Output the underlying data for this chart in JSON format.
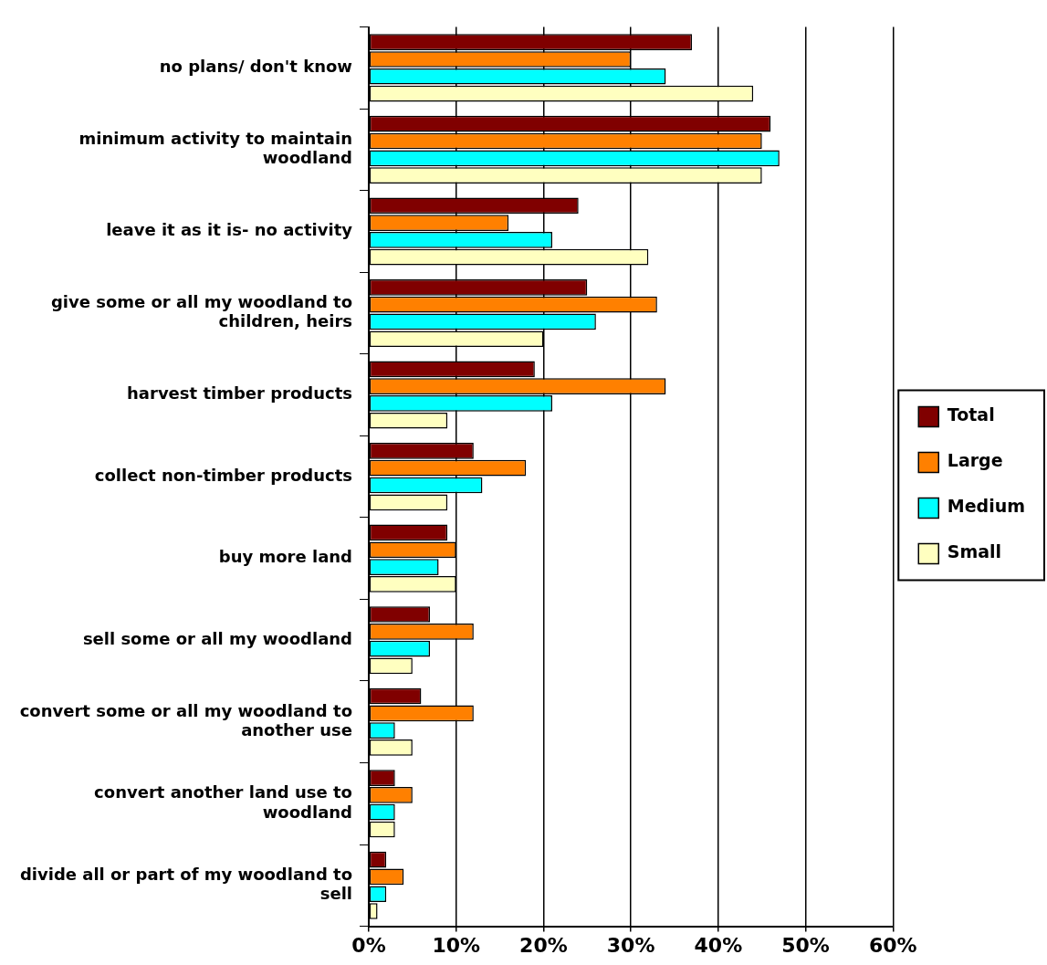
{
  "chart_data": {
    "type": "bar",
    "orientation": "horizontal",
    "categories": [
      "no plans/ don't know",
      "minimum activity to maintain woodland",
      "leave it as it is- no activity",
      "give some or all my woodland to children, heirs",
      "harvest timber products",
      "collect non-timber products",
      "buy more land",
      "sell some or all my woodland",
      "convert some or all my woodland to another use",
      "convert another land use to woodland",
      "divide all or part of my woodland to sell"
    ],
    "series": [
      {
        "name": "Total",
        "color": "#800000",
        "values": [
          37,
          46,
          24,
          25,
          19,
          12,
          9,
          7,
          6,
          3,
          2
        ]
      },
      {
        "name": "Large",
        "color": "#ff8000",
        "values": [
          30,
          45,
          16,
          33,
          34,
          18,
          10,
          12,
          12,
          5,
          4
        ]
      },
      {
        "name": "Medium",
        "color": "#00ffff",
        "values": [
          34,
          47,
          21,
          26,
          21,
          13,
          8,
          7,
          3,
          3,
          2
        ]
      },
      {
        "name": "Small",
        "color": "#ffffc0",
        "values": [
          44,
          45,
          32,
          20,
          9,
          9,
          10,
          5,
          5,
          3,
          1
        ]
      }
    ],
    "xlim": [
      0,
      60
    ],
    "xticks": [
      {
        "value": 0,
        "label": "0%"
      },
      {
        "value": 10,
        "label": "10%"
      },
      {
        "value": 20,
        "label": "20%"
      },
      {
        "value": 30,
        "label": "30%"
      },
      {
        "value": 40,
        "label": "40%"
      },
      {
        "value": 50,
        "label": "50%"
      },
      {
        "value": 60,
        "label": "60%"
      }
    ],
    "grid": "x",
    "legend": "right"
  }
}
